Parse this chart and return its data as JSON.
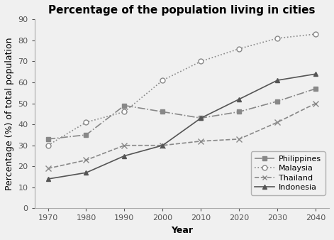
{
  "title": "Percentage of the population living in cities",
  "xlabel": "Year",
  "ylabel": "Percentage (%) of total population",
  "years": [
    1970,
    1980,
    1990,
    2000,
    2010,
    2020,
    2030,
    2040
  ],
  "series": {
    "Philippines": {
      "values": [
        33,
        35,
        49,
        46,
        43,
        46,
        51,
        57
      ],
      "color": "#888888",
      "linestyle": "-.",
      "marker": "s",
      "markersize": 5,
      "markerfacecolor": "#888888"
    },
    "Malaysia": {
      "values": [
        30,
        41,
        46,
        61,
        70,
        76,
        81,
        83
      ],
      "color": "#888888",
      "linestyle": ":",
      "marker": "o",
      "markersize": 5,
      "markerfacecolor": "white"
    },
    "Thailand": {
      "values": [
        19,
        23,
        30,
        30,
        32,
        33,
        41,
        50
      ],
      "color": "#888888",
      "linestyle": "--",
      "marker": "x",
      "markersize": 6,
      "markerfacecolor": "#888888"
    },
    "Indonesia": {
      "values": [
        14,
        17,
        25,
        30,
        43,
        52,
        61,
        64
      ],
      "color": "#555555",
      "linestyle": "-",
      "marker": "^",
      "markersize": 5,
      "markerfacecolor": "#555555"
    }
  },
  "ylim": [
    0,
    90
  ],
  "yticks": [
    0,
    10,
    20,
    30,
    40,
    50,
    60,
    70,
    80,
    90
  ],
  "background_color": "#f0f0f0",
  "title_fontsize": 11,
  "axis_label_fontsize": 9,
  "tick_fontsize": 8,
  "legend_fontsize": 8
}
